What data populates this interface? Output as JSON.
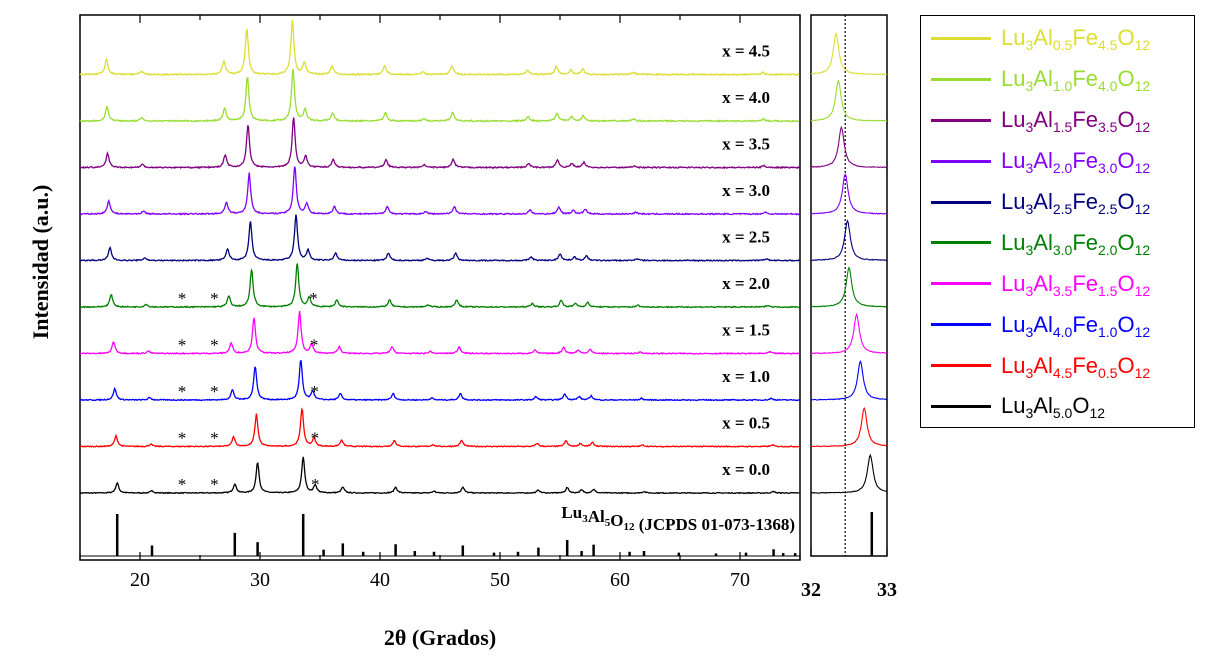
{
  "chart_data": [
    {
      "type": "line",
      "subtype": "stacked-xrd-patterns",
      "title": "",
      "xlabel": "2θ (Grados)",
      "ylabel": "Intensidad (a.u.)",
      "xlim": [
        15,
        75
      ],
      "xticks": [
        20,
        30,
        40,
        50,
        60,
        70
      ],
      "yticks_shown": false,
      "reference": {
        "label": "Lu3Al5O12 (JCPDS 01-073-1368)",
        "label_parts": [
          {
            "t": "Lu"
          },
          {
            "t": "3",
            "sub": true
          },
          {
            "t": "Al"
          },
          {
            "t": "5",
            "sub": true
          },
          {
            "t": "O"
          },
          {
            "t": "12",
            "sub": true
          },
          {
            "t": " (JCPDS 01-073-1368)"
          }
        ],
        "color": "#000000",
        "peaks": [
          {
            "x": 18.1,
            "h": 1.0
          },
          {
            "x": 21.0,
            "h": 0.25
          },
          {
            "x": 27.9,
            "h": 0.55
          },
          {
            "x": 29.8,
            "h": 0.33
          },
          {
            "x": 33.6,
            "h": 1.0
          },
          {
            "x": 35.3,
            "h": 0.15
          },
          {
            "x": 36.9,
            "h": 0.3
          },
          {
            "x": 38.6,
            "h": 0.1
          },
          {
            "x": 41.3,
            "h": 0.28
          },
          {
            "x": 42.9,
            "h": 0.12
          },
          {
            "x": 44.5,
            "h": 0.1
          },
          {
            "x": 46.9,
            "h": 0.25
          },
          {
            "x": 49.5,
            "h": 0.08
          },
          {
            "x": 51.5,
            "h": 0.1
          },
          {
            "x": 53.2,
            "h": 0.2
          },
          {
            "x": 55.6,
            "h": 0.38
          },
          {
            "x": 56.8,
            "h": 0.12
          },
          {
            "x": 57.8,
            "h": 0.27
          },
          {
            "x": 60.8,
            "h": 0.1
          },
          {
            "x": 62.0,
            "h": 0.12
          },
          {
            "x": 64.9,
            "h": 0.08
          },
          {
            "x": 68.0,
            "h": 0.06
          },
          {
            "x": 70.5,
            "h": 0.08
          },
          {
            "x": 72.8,
            "h": 0.16
          },
          {
            "x": 73.6,
            "h": 0.07
          },
          {
            "x": 74.6,
            "h": 0.07
          }
        ]
      },
      "series": [
        {
          "name": "x = 0.0",
          "color": "#000000",
          "shift": 0.0,
          "asterisks": true
        },
        {
          "name": "x = 0.5",
          "color": "#ff0000",
          "shift": -0.1,
          "asterisks": true
        },
        {
          "name": "x = 1.0",
          "color": "#0000ff",
          "shift": -0.2,
          "asterisks": true
        },
        {
          "name": "x = 1.5",
          "color": "#ff00ff",
          "shift": -0.3,
          "asterisks": true
        },
        {
          "name": "x = 2.0",
          "color": "#008000",
          "shift": -0.5,
          "asterisks": true
        },
        {
          "name": "x = 2.5",
          "color": "#000080",
          "shift": -0.6,
          "asterisks": false
        },
        {
          "name": "x = 3.0",
          "color": "#8000ff",
          "shift": -0.7,
          "asterisks": false
        },
        {
          "name": "x = 3.5",
          "color": "#800080",
          "shift": -0.8,
          "asterisks": false
        },
        {
          "name": "x = 4.0",
          "color": "#99dd33",
          "shift": -0.85,
          "asterisks": false
        },
        {
          "name": "x = 4.5",
          "color": "#dddd33",
          "shift": -0.9,
          "asterisks": false
        }
      ],
      "series_peaks": [
        {
          "x": 18.1,
          "h": 0.28
        },
        {
          "x": 21.0,
          "h": 0.06
        },
        {
          "x": 27.9,
          "h": 0.25
        },
        {
          "x": 29.8,
          "h": 0.85
        },
        {
          "x": 33.6,
          "h": 1.0
        },
        {
          "x": 34.6,
          "h": 0.22
        },
        {
          "x": 36.9,
          "h": 0.16
        },
        {
          "x": 41.3,
          "h": 0.16
        },
        {
          "x": 44.5,
          "h": 0.05
        },
        {
          "x": 46.9,
          "h": 0.16
        },
        {
          "x": 53.2,
          "h": 0.08
        },
        {
          "x": 55.6,
          "h": 0.15
        },
        {
          "x": 56.8,
          "h": 0.08
        },
        {
          "x": 57.8,
          "h": 0.1
        },
        {
          "x": 62.0,
          "h": 0.04
        },
        {
          "x": 72.8,
          "h": 0.04
        }
      ],
      "asterisk_positions": [
        23.5,
        26.2,
        34.6
      ]
    },
    {
      "type": "line",
      "subtype": "zoom-inset",
      "xlim": [
        32,
        33
      ],
      "xticks": [
        32,
        33
      ],
      "reference_line_x": 32.45,
      "reference_peak_x": 32.8,
      "peak_positions": [
        {
          "series": "x = 0.0",
          "x": 32.78
        },
        {
          "series": "x = 0.5",
          "x": 32.7
        },
        {
          "series": "x = 1.0",
          "x": 32.65
        },
        {
          "series": "x = 1.5",
          "x": 32.6
        },
        {
          "series": "x = 2.0",
          "x": 32.5
        },
        {
          "series": "x = 2.5",
          "x": 32.48
        },
        {
          "series": "x = 3.0",
          "x": 32.45
        },
        {
          "series": "x = 3.5",
          "x": 32.4
        },
        {
          "series": "x = 4.0",
          "x": 32.36
        },
        {
          "series": "x = 4.5",
          "x": 32.33
        }
      ]
    }
  ],
  "legend": [
    {
      "color": "#dddd33",
      "parts": [
        {
          "t": "Lu"
        },
        {
          "t": "3",
          "sub": true
        },
        {
          "t": "Al"
        },
        {
          "t": "0.5",
          "sub": true
        },
        {
          "t": "Fe"
        },
        {
          "t": "4.5",
          "sub": true
        },
        {
          "t": "O"
        },
        {
          "t": "12",
          "sub": true
        }
      ]
    },
    {
      "color": "#99dd33",
      "parts": [
        {
          "t": "Lu"
        },
        {
          "t": "3",
          "sub": true
        },
        {
          "t": "Al"
        },
        {
          "t": "1.0",
          "sub": true
        },
        {
          "t": "Fe"
        },
        {
          "t": "4.0",
          "sub": true
        },
        {
          "t": "O"
        },
        {
          "t": "12",
          "sub": true
        }
      ]
    },
    {
      "color": "#800080",
      "parts": [
        {
          "t": "Lu"
        },
        {
          "t": "3",
          "sub": true
        },
        {
          "t": "Al"
        },
        {
          "t": "1.5",
          "sub": true
        },
        {
          "t": "Fe"
        },
        {
          "t": "3.5",
          "sub": true
        },
        {
          "t": "O"
        },
        {
          "t": "12",
          "sub": true
        }
      ]
    },
    {
      "color": "#8000ff",
      "parts": [
        {
          "t": "Lu"
        },
        {
          "t": "3",
          "sub": true
        },
        {
          "t": "Al"
        },
        {
          "t": "2.0",
          "sub": true
        },
        {
          "t": "Fe"
        },
        {
          "t": "3.0",
          "sub": true
        },
        {
          "t": "O"
        },
        {
          "t": "12",
          "sub": true
        }
      ]
    },
    {
      "color": "#000080",
      "parts": [
        {
          "t": "Lu"
        },
        {
          "t": "3",
          "sub": true
        },
        {
          "t": "Al"
        },
        {
          "t": "2.5",
          "sub": true
        },
        {
          "t": "Fe"
        },
        {
          "t": "2.5",
          "sub": true
        },
        {
          "t": "O"
        },
        {
          "t": "12",
          "sub": true
        }
      ]
    },
    {
      "color": "#008000",
      "parts": [
        {
          "t": "Lu"
        },
        {
          "t": "3",
          "sub": true
        },
        {
          "t": "Al"
        },
        {
          "t": "3.0",
          "sub": true
        },
        {
          "t": "Fe"
        },
        {
          "t": "2.0",
          "sub": true
        },
        {
          "t": "O"
        },
        {
          "t": "12",
          "sub": true
        }
      ]
    },
    {
      "color": "#ff00ff",
      "parts": [
        {
          "t": "Lu"
        },
        {
          "t": "3",
          "sub": true
        },
        {
          "t": "Al"
        },
        {
          "t": "3.5",
          "sub": true
        },
        {
          "t": "Fe"
        },
        {
          "t": "1.5",
          "sub": true
        },
        {
          "t": "O"
        },
        {
          "t": "12",
          "sub": true
        }
      ]
    },
    {
      "color": "#0000ff",
      "parts": [
        {
          "t": "Lu"
        },
        {
          "t": "3",
          "sub": true
        },
        {
          "t": "Al"
        },
        {
          "t": "4.0",
          "sub": true
        },
        {
          "t": "Fe"
        },
        {
          "t": "1.0",
          "sub": true
        },
        {
          "t": "O"
        },
        {
          "t": "12",
          "sub": true
        }
      ]
    },
    {
      "color": "#ff0000",
      "parts": [
        {
          "t": "Lu"
        },
        {
          "t": "3",
          "sub": true
        },
        {
          "t": "Al"
        },
        {
          "t": "4.5",
          "sub": true
        },
        {
          "t": "Fe"
        },
        {
          "t": "0.5",
          "sub": true
        },
        {
          "t": "O"
        },
        {
          "t": "12",
          "sub": true
        }
      ]
    },
    {
      "color": "#000000",
      "parts": [
        {
          "t": "Lu"
        },
        {
          "t": "3",
          "sub": true
        },
        {
          "t": "Al"
        },
        {
          "t": "5.0",
          "sub": true
        },
        {
          "t": "O"
        },
        {
          "t": "12",
          "sub": true
        }
      ]
    }
  ]
}
